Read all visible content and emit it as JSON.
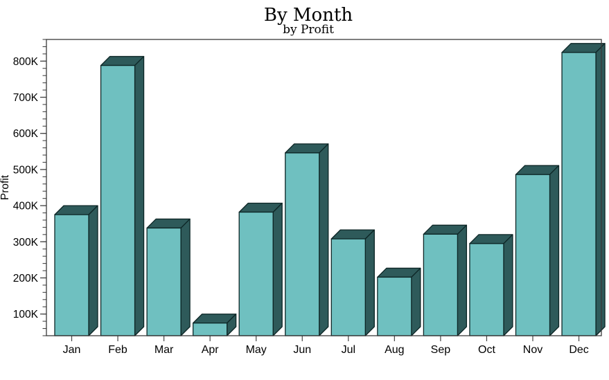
{
  "chart_data": {
    "type": "bar",
    "bar_style": "3d",
    "title": "By Month",
    "subtitle": "by Profit",
    "xlabel": "",
    "ylabel": "Profit",
    "categories": [
      "Jan",
      "Feb",
      "Mar",
      "Apr",
      "May",
      "Jun",
      "Jul",
      "Aug",
      "Sep",
      "Oct",
      "Nov",
      "Dec"
    ],
    "values": [
      375000,
      788000,
      338000,
      75000,
      382000,
      546000,
      308000,
      202000,
      321000,
      295000,
      486000,
      824000
    ],
    "y_axis": {
      "min": 40000,
      "max": 860000,
      "major_tick_step": 100000,
      "minor_tick_step": 20000,
      "major_tick_labels": [
        "100K",
        "200K",
        "300K",
        "400K",
        "500K",
        "600K",
        "700K",
        "800K"
      ],
      "grid": false
    },
    "legend": "none",
    "colors": {
      "bar_front": "#6FC0C0",
      "bar_dark": "#2E5A5A",
      "bar_outline": "#0D2626",
      "axis_line": "#3A3A3A",
      "tick": "#444444",
      "text": "#000000",
      "background": "#FFFFFF"
    }
  }
}
